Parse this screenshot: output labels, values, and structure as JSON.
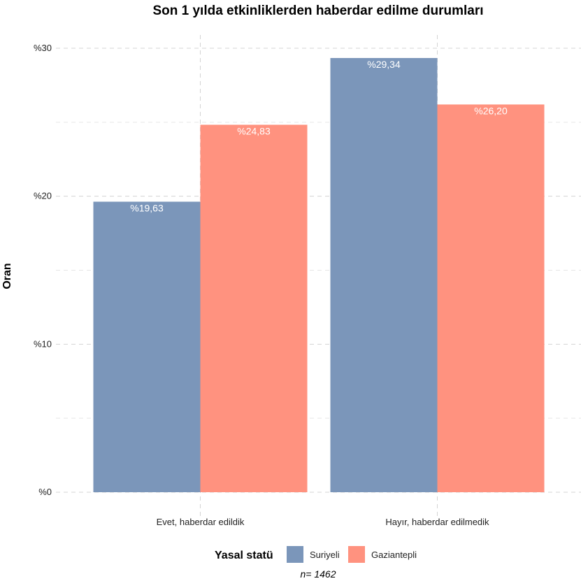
{
  "chart_data": {
    "type": "bar",
    "title": "Son 1 yılda etkinliklerden haberdar edilme durumları",
    "ylabel": "Oran",
    "xlabel": "",
    "categories": [
      "Evet, haberdar edildik",
      "Hayır, haberdar edilmedik"
    ],
    "series": [
      {
        "name": "Suriyeli",
        "color": "#7b96ba",
        "values": [
          19.63,
          29.34
        ],
        "labels": [
          "%19,63",
          "%29,34"
        ]
      },
      {
        "name": "Gaziantepli",
        "color": "#ff927f",
        "values": [
          24.83,
          26.2
        ],
        "labels": [
          "%24,83",
          "%26,20"
        ]
      }
    ],
    "ylim": [
      0,
      30
    ],
    "yticks": [
      {
        "value": 0,
        "label": "%0"
      },
      {
        "value": 10,
        "label": "%10"
      },
      {
        "value": 20,
        "label": "%20"
      },
      {
        "value": 30,
        "label": "%30"
      }
    ],
    "grid": true,
    "legend": {
      "title": "Yasal statü",
      "position": "bottom"
    },
    "caption": "n=  1462"
  }
}
